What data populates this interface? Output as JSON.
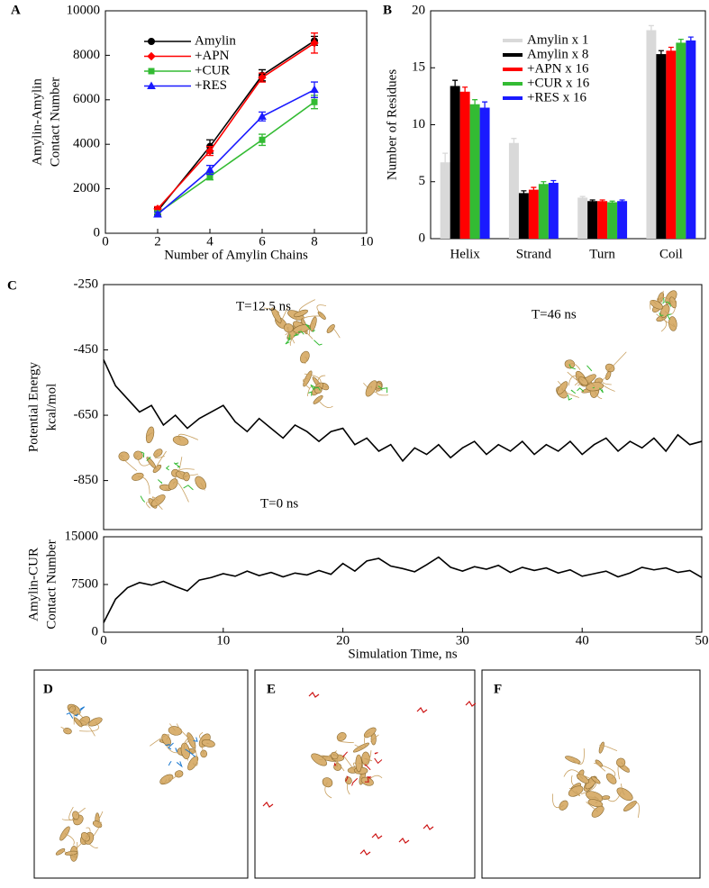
{
  "panel_labels": [
    "A",
    "B",
    "C",
    "D",
    "E",
    "F"
  ],
  "chart_data": [
    {
      "type": "line",
      "xlabel": "Number of Amylin Chains",
      "ylabel": [
        "Amylin-Amylin",
        "Contact Number"
      ],
      "x": [
        2,
        4,
        6,
        8
      ],
      "xlim": [
        0,
        10
      ],
      "xticks": [
        0,
        2,
        4,
        6,
        8,
        10
      ],
      "ylim": [
        0,
        10000
      ],
      "yticks": [
        0,
        2000,
        4000,
        6000,
        8000,
        10000
      ],
      "series": [
        {
          "name": "Amylin",
          "color": "#000000",
          "marker": "circle",
          "values": [
            1000,
            3900,
            7100,
            8650
          ],
          "errors": [
            150,
            300,
            250,
            200
          ]
        },
        {
          "name": "+APN",
          "color": "#ff0000",
          "marker": "diamond",
          "values": [
            1100,
            3700,
            7000,
            8550
          ],
          "errors": [
            100,
            200,
            200,
            450
          ]
        },
        {
          "name": "+CUR",
          "color": "#33bb33",
          "marker": "square",
          "values": [
            900,
            2550,
            4200,
            5900
          ],
          "errors": [
            100,
            150,
            250,
            300
          ]
        },
        {
          "name": "+RES",
          "color": "#1a1aff",
          "marker": "triangle",
          "values": [
            850,
            2850,
            5250,
            6450
          ],
          "errors": [
            100,
            200,
            200,
            350
          ]
        }
      ]
    },
    {
      "type": "bar",
      "ylabel": [
        "Number of Residues"
      ],
      "categories": [
        "Helix",
        "Strand",
        "Turn",
        "Coil"
      ],
      "ylim": [
        0,
        20
      ],
      "yticks": [
        0,
        5,
        10,
        15,
        20
      ],
      "series": [
        {
          "name": "Amylin x 1",
          "color": "#d9d9d9",
          "values": [
            6.7,
            8.4,
            3.6,
            18.3
          ],
          "errors": [
            0.8,
            0.4,
            0.1,
            0.4
          ]
        },
        {
          "name": "Amylin x 8",
          "color": "#000000",
          "values": [
            13.4,
            4.0,
            3.3,
            16.2
          ],
          "errors": [
            0.5,
            0.2,
            0.1,
            0.3
          ]
        },
        {
          "name": "+APN x 16",
          "color": "#ff0000",
          "values": [
            12.9,
            4.3,
            3.3,
            16.5
          ],
          "errors": [
            0.4,
            0.2,
            0.1,
            0.3
          ]
        },
        {
          "name": "+CUR x 16",
          "color": "#33bb33",
          "values": [
            11.8,
            4.8,
            3.2,
            17.2
          ],
          "errors": [
            0.4,
            0.2,
            0.1,
            0.3
          ]
        },
        {
          "name": "+RES x 16",
          "color": "#1a1aff",
          "values": [
            11.5,
            4.9,
            3.3,
            17.4
          ],
          "errors": [
            0.5,
            0.2,
            0.1,
            0.3
          ]
        }
      ]
    },
    {
      "type": "line",
      "ylabel": [
        "Potential Energy",
        "kcal/mol"
      ],
      "annotations": [
        "T=12.5 ns",
        "T=46 ns",
        "T=0 ns"
      ],
      "x": [
        0,
        1,
        2,
        3,
        4,
        5,
        6,
        7,
        8,
        9,
        10,
        11,
        12,
        13,
        14,
        15,
        16,
        17,
        18,
        19,
        20,
        21,
        22,
        23,
        24,
        25,
        26,
        27,
        28,
        29,
        30,
        31,
        32,
        33,
        34,
        35,
        36,
        37,
        38,
        39,
        40,
        41,
        42,
        43,
        44,
        45,
        46,
        47,
        48,
        49,
        50
      ],
      "xlim": [
        0,
        50
      ],
      "ylim": [
        -1000,
        -250
      ],
      "yticks": [
        -250,
        -450,
        -650,
        -850
      ],
      "series": [
        {
          "color": "#000000",
          "values": [
            -480,
            -560,
            -600,
            -640,
            -620,
            -680,
            -650,
            -690,
            -660,
            -640,
            -620,
            -670,
            -700,
            -660,
            -690,
            -720,
            -680,
            -700,
            -730,
            -700,
            -690,
            -740,
            -720,
            -760,
            -740,
            -790,
            -750,
            -770,
            -740,
            -780,
            -750,
            -730,
            -770,
            -740,
            -760,
            -730,
            -770,
            -740,
            -760,
            -730,
            -770,
            -740,
            -720,
            -760,
            -730,
            -750,
            -720,
            -760,
            -710,
            -740,
            -730
          ]
        }
      ]
    },
    {
      "type": "line",
      "xlabel": "Simulation Time, ns",
      "ylabel": [
        "Amylin-CUR",
        "Contact Number"
      ],
      "x": [
        0,
        1,
        2,
        3,
        4,
        5,
        6,
        7,
        8,
        9,
        10,
        11,
        12,
        13,
        14,
        15,
        16,
        17,
        18,
        19,
        20,
        21,
        22,
        23,
        24,
        25,
        26,
        27,
        28,
        29,
        30,
        31,
        32,
        33,
        34,
        35,
        36,
        37,
        38,
        39,
        40,
        41,
        42,
        43,
        44,
        45,
        46,
        47,
        48,
        49,
        50
      ],
      "xlim": [
        0,
        50
      ],
      "xticks": [
        0,
        10,
        20,
        30,
        40,
        50
      ],
      "ylim": [
        0,
        15000
      ],
      "yticks": [
        0,
        7500,
        15000
      ],
      "series": [
        {
          "color": "#000000",
          "values": [
            1500,
            5200,
            7000,
            7800,
            7400,
            8000,
            7200,
            6500,
            8200,
            8600,
            9200,
            8800,
            9600,
            8900,
            9400,
            8700,
            9300,
            9000,
            9700,
            9100,
            10800,
            9600,
            11200,
            11600,
            10400,
            10000,
            9500,
            10600,
            11800,
            10200,
            9600,
            10300,
            9900,
            10500,
            9400,
            10200,
            9700,
            10100,
            9300,
            9800,
            8800,
            9200,
            9600,
            8700,
            9300,
            10200,
            9800,
            10100,
            9400,
            9700,
            8600
          ]
        }
      ]
    }
  ]
}
